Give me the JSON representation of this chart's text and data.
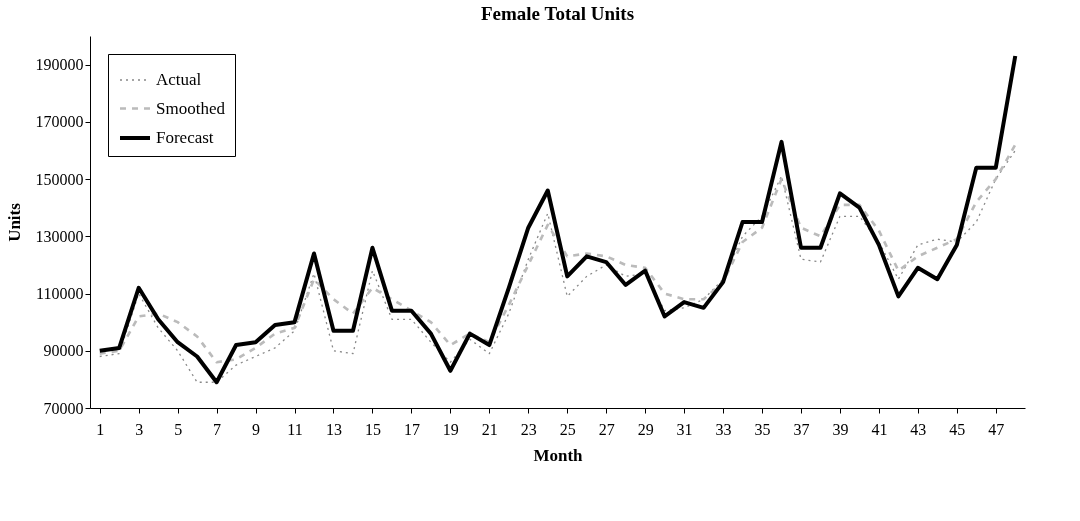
{
  "chart_data": {
    "type": "line",
    "title": "Female Total Units",
    "xlabel": "Month",
    "ylabel": "Units",
    "x": [
      1,
      2,
      3,
      4,
      5,
      6,
      7,
      8,
      9,
      10,
      11,
      12,
      13,
      14,
      15,
      16,
      17,
      18,
      19,
      20,
      21,
      22,
      23,
      24,
      25,
      26,
      27,
      28,
      29,
      30,
      31,
      32,
      33,
      34,
      35,
      36,
      37,
      38,
      39,
      40,
      41,
      42,
      43,
      44,
      45,
      46,
      47,
      48
    ],
    "series": [
      {
        "name": "Actual",
        "color": "#888888",
        "line_style": "dotted",
        "values": [
          88000,
          89000,
          110000,
          98000,
          90000,
          79000,
          79000,
          85000,
          88000,
          91000,
          97000,
          117000,
          90000,
          89000,
          118000,
          101000,
          101000,
          93000,
          86000,
          94000,
          89000,
          103000,
          122000,
          138000,
          109000,
          116000,
          120000,
          116000,
          117000,
          104000,
          105000,
          108000,
          115000,
          130000,
          137000,
          151000,
          122000,
          121000,
          137000,
          137000,
          128000,
          115000,
          127000,
          129000,
          128000,
          135000,
          150000,
          160000
        ]
      },
      {
        "name": "Smoothed",
        "color": "#bbbbbb",
        "line_style": "dashed",
        "values": [
          89000,
          90000,
          102000,
          103000,
          100000,
          95000,
          86000,
          87000,
          91000,
          96000,
          98000,
          115000,
          108000,
          103000,
          112000,
          108000,
          104000,
          100000,
          92000,
          96000,
          93000,
          106000,
          120000,
          134000,
          123000,
          124000,
          123000,
          120000,
          119000,
          110000,
          108000,
          108000,
          114000,
          128000,
          133000,
          150000,
          133000,
          130000,
          141000,
          141000,
          132000,
          118000,
          123000,
          126000,
          129000,
          142000,
          150000,
          162000
        ]
      },
      {
        "name": "Forecast",
        "color": "#000000",
        "line_style": "solid",
        "values": [
          90000,
          91000,
          112000,
          101000,
          93000,
          88000,
          79000,
          92000,
          93000,
          99000,
          100000,
          124000,
          97000,
          97000,
          126000,
          104000,
          104000,
          96000,
          83000,
          96000,
          92000,
          112000,
          133000,
          146000,
          116000,
          123000,
          121000,
          113000,
          118000,
          102000,
          107000,
          105000,
          114000,
          135000,
          135000,
          163000,
          126000,
          126000,
          145000,
          140000,
          127000,
          109000,
          119000,
          115000,
          127000,
          154000,
          154000,
          193000
        ]
      }
    ],
    "xlim": [
      0.5,
      48.5
    ],
    "xticks": [
      1,
      3,
      5,
      7,
      9,
      11,
      13,
      15,
      17,
      19,
      21,
      23,
      25,
      27,
      29,
      31,
      33,
      35,
      37,
      39,
      41,
      43,
      45,
      47
    ],
    "ylim": [
      70000,
      200000
    ],
    "yticks": [
      70000,
      90000,
      110000,
      130000,
      150000,
      170000,
      190000
    ],
    "grid": false,
    "legend": "top left"
  }
}
